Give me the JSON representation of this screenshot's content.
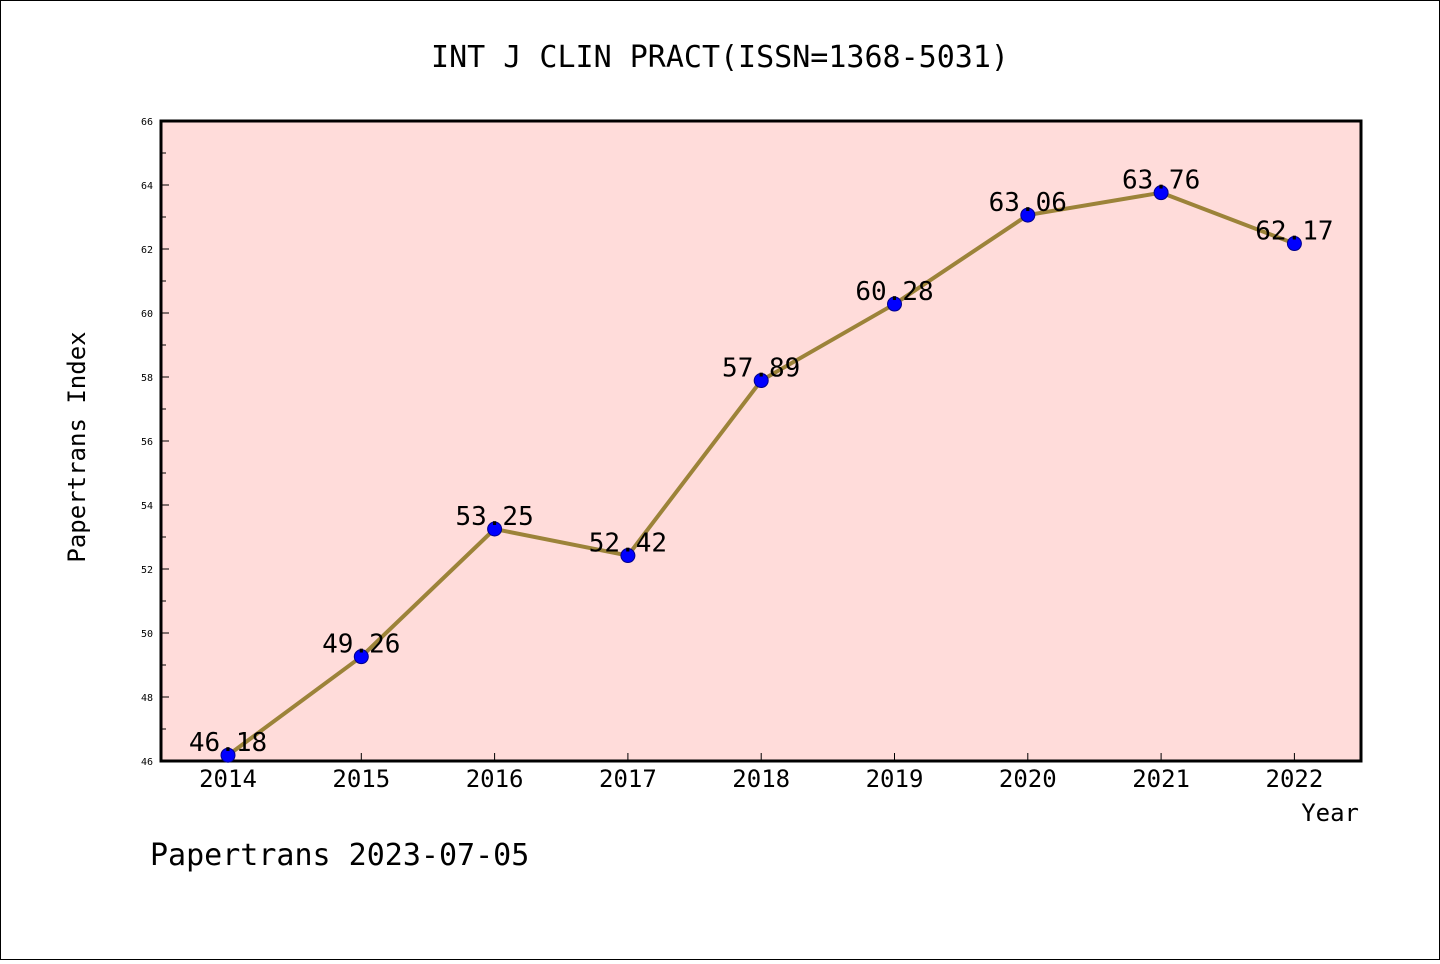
{
  "chart_data": {
    "type": "line",
    "title": "INT J CLIN PRACT(ISSN=1368-5031)",
    "xlabel": "Year",
    "ylabel": "Papertrans Index",
    "footer": "Papertrans 2023-07-05",
    "categories": [
      "2014",
      "2015",
      "2016",
      "2017",
      "2018",
      "2019",
      "2020",
      "2021",
      "2022"
    ],
    "series": [
      {
        "values": [
          46.18,
          49.26,
          53.25,
          52.42,
          57.89,
          60.28,
          63.06,
          63.76,
          62.17
        ],
        "labels": [
          "46.18",
          "49.26",
          "53.25",
          "52.42",
          "57.89",
          "60.28",
          "63.06",
          "63.76",
          "62.17"
        ]
      }
    ],
    "ylim": [
      46,
      66
    ],
    "yticks": [
      "46",
      "48",
      "50",
      "52",
      "54",
      "56",
      "58",
      "60",
      "62",
      "64",
      "66"
    ],
    "grid": false,
    "colors": {
      "plot_background": "#FFDCDA",
      "line": "#9C8339",
      "marker": "#0000FF"
    }
  }
}
